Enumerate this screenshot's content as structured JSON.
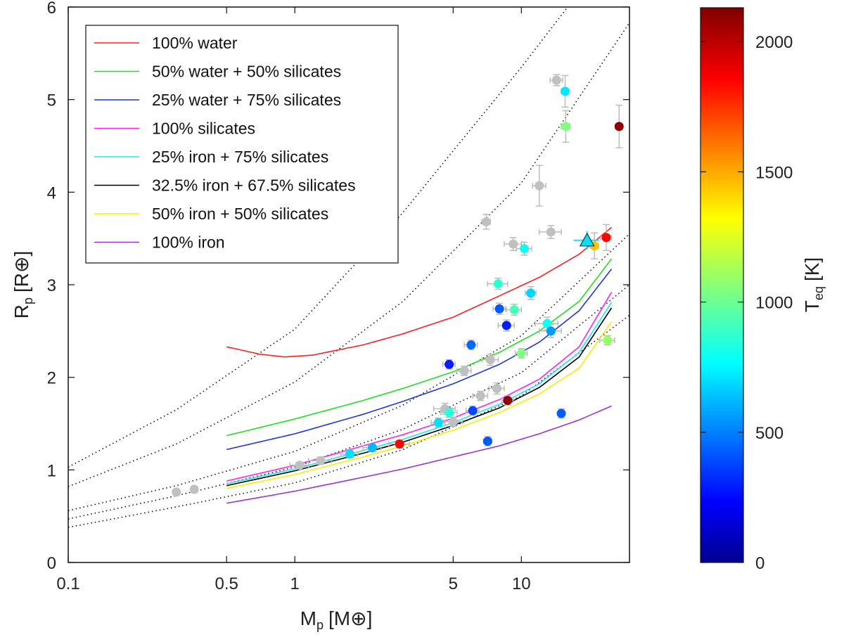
{
  "chart_data": {
    "type": "scatter",
    "x_scale": "log",
    "xlabel": {
      "main": "M",
      "sub": "p",
      "unit": "[M⊕]"
    },
    "ylabel": {
      "main": "R",
      "sub": "p",
      "unit": "[R⊕]"
    },
    "xlim": [
      0.1,
      30
    ],
    "ylim": [
      0,
      6
    ],
    "x_ticks": [
      {
        "value": 0.1,
        "label": "0.1"
      },
      {
        "value": 0.5,
        "label": "0.5"
      },
      {
        "value": 1,
        "label": "1"
      },
      {
        "value": 5,
        "label": "5"
      },
      {
        "value": 10,
        "label": "10"
      }
    ],
    "y_ticks": [
      {
        "value": 0,
        "label": "0"
      },
      {
        "value": 1,
        "label": "1"
      },
      {
        "value": 2,
        "label": "2"
      },
      {
        "value": 3,
        "label": "3"
      },
      {
        "value": 4,
        "label": "4"
      },
      {
        "value": 5,
        "label": "5"
      },
      {
        "value": 6,
        "label": "6"
      }
    ],
    "legend_position": "top-left",
    "models": [
      {
        "name": "100% water",
        "color": "#ff2020",
        "points": [
          [
            0.5,
            2.33
          ],
          [
            0.7,
            2.25
          ],
          [
            0.9,
            2.22
          ],
          [
            1.2,
            2.24
          ],
          [
            2,
            2.35
          ],
          [
            3,
            2.47
          ],
          [
            5,
            2.65
          ],
          [
            8,
            2.88
          ],
          [
            12,
            3.08
          ],
          [
            18,
            3.33
          ],
          [
            25,
            3.62
          ]
        ]
      },
      {
        "name": "50% water + 50% silicates",
        "color": "#22dd22",
        "points": [
          [
            0.5,
            1.37
          ],
          [
            1,
            1.55
          ],
          [
            2,
            1.75
          ],
          [
            3,
            1.88
          ],
          [
            5,
            2.06
          ],
          [
            8,
            2.27
          ],
          [
            12,
            2.5
          ],
          [
            18,
            2.82
          ],
          [
            25,
            3.28
          ]
        ]
      },
      {
        "name": "25% water + 75% silicates",
        "color": "#1f35e0",
        "points": [
          [
            0.5,
            1.22
          ],
          [
            1,
            1.39
          ],
          [
            2,
            1.6
          ],
          [
            3,
            1.74
          ],
          [
            5,
            1.93
          ],
          [
            8,
            2.14
          ],
          [
            12,
            2.38
          ],
          [
            18,
            2.72
          ],
          [
            25,
            3.17
          ]
        ]
      },
      {
        "name": "100% silicates",
        "color": "#ff20ff",
        "points": [
          [
            0.5,
            0.88
          ],
          [
            1,
            1.05
          ],
          [
            2,
            1.26
          ],
          [
            3,
            1.38
          ],
          [
            5,
            1.56
          ],
          [
            8,
            1.76
          ],
          [
            12,
            1.98
          ],
          [
            18,
            2.33
          ],
          [
            25,
            2.92
          ]
        ]
      },
      {
        "name": "25% iron + 75% silicates",
        "color": "#20e8e8",
        "points": [
          [
            0.5,
            0.85
          ],
          [
            1,
            1.01
          ],
          [
            2,
            1.21
          ],
          [
            3,
            1.33
          ],
          [
            5,
            1.51
          ],
          [
            8,
            1.71
          ],
          [
            12,
            1.93
          ],
          [
            18,
            2.27
          ],
          [
            25,
            2.81
          ]
        ]
      },
      {
        "name": "32.5% iron + 67.5% silicates",
        "color": "#000000",
        "points": [
          [
            0.5,
            0.83
          ],
          [
            1,
            0.99
          ],
          [
            2,
            1.18
          ],
          [
            3,
            1.3
          ],
          [
            5,
            1.48
          ],
          [
            8,
            1.67
          ],
          [
            12,
            1.89
          ],
          [
            18,
            2.22
          ],
          [
            25,
            2.75
          ]
        ]
      },
      {
        "name": "50% iron + 50% silicates",
        "color": "#f2f200",
        "points": [
          [
            0.5,
            0.8
          ],
          [
            1,
            0.95
          ],
          [
            2,
            1.14
          ],
          [
            3,
            1.26
          ],
          [
            5,
            1.43
          ],
          [
            8,
            1.62
          ],
          [
            12,
            1.82
          ],
          [
            18,
            2.1
          ],
          [
            25,
            2.6
          ]
        ]
      },
      {
        "name": "100% iron",
        "color": "#9a35d0",
        "points": [
          [
            0.5,
            0.64
          ],
          [
            1,
            0.77
          ],
          [
            2,
            0.92
          ],
          [
            3,
            1.01
          ],
          [
            5,
            1.14
          ],
          [
            8,
            1.26
          ],
          [
            12,
            1.39
          ],
          [
            18,
            1.54
          ],
          [
            25,
            1.69
          ]
        ]
      }
    ],
    "dotted_curves": [
      [
        [
          0.1,
          1.03
        ],
        [
          0.3,
          1.65
        ],
        [
          1,
          2.52
        ],
        [
          3,
          3.78
        ],
        [
          10,
          5.35
        ],
        [
          16,
          6.0
        ]
      ],
      [
        [
          0.1,
          0.82
        ],
        [
          0.3,
          1.28
        ],
        [
          1,
          1.95
        ],
        [
          3,
          2.82
        ],
        [
          10,
          4.1
        ],
        [
          30,
          5.83
        ]
      ],
      [
        [
          0.1,
          0.56
        ],
        [
          0.3,
          0.83
        ],
        [
          1,
          1.2
        ],
        [
          3,
          1.7
        ],
        [
          10,
          2.45
        ],
        [
          30,
          3.55
        ]
      ],
      [
        [
          0.1,
          0.47
        ],
        [
          0.3,
          0.72
        ],
        [
          1,
          1.03
        ],
        [
          3,
          1.44
        ],
        [
          10,
          2.05
        ],
        [
          30,
          3.0
        ]
      ],
      [
        [
          0.1,
          0.38
        ],
        [
          0.3,
          0.6
        ],
        [
          1,
          0.86
        ],
        [
          3,
          1.22
        ],
        [
          10,
          1.8
        ],
        [
          30,
          2.67
        ]
      ]
    ],
    "planets": [
      {
        "m": 0.3,
        "r": 0.76,
        "dm": 0.01,
        "dr": 0.03,
        "teq": null
      },
      {
        "m": 0.36,
        "r": 0.79,
        "dm": 0.01,
        "dr": 0.03,
        "teq": null
      },
      {
        "m": 1.05,
        "r": 1.05,
        "dm": 0.1,
        "dr": 0.03,
        "teq": null
      },
      {
        "m": 1.3,
        "r": 1.1,
        "dm": 0.15,
        "dr": 0.04,
        "teq": null
      },
      {
        "m": 1.75,
        "r": 1.17,
        "dm": 0.15,
        "dr": 0.04,
        "teq": 700
      },
      {
        "m": 2.2,
        "r": 1.24,
        "dm": 0.2,
        "dr": 0.04,
        "teq": 620
      },
      {
        "m": 2.9,
        "r": 1.28,
        "dm": 0.3,
        "dr": 0.04,
        "teq": 1850
      },
      {
        "m": 4.3,
        "r": 1.51,
        "dm": 0.3,
        "dr": 0.05,
        "teq": 700
      },
      {
        "m": 4.6,
        "r": 1.66,
        "dm": 0.5,
        "dr": 0.06,
        "teq": null
      },
      {
        "m": 4.8,
        "r": 1.62,
        "dm": 0.4,
        "dr": 0.05,
        "teq": 850
      },
      {
        "m": 5.0,
        "r": 1.52,
        "dm": 0.5,
        "dr": 0.05,
        "teq": null
      },
      {
        "m": 5.6,
        "r": 2.07,
        "dm": 0.4,
        "dr": 0.05,
        "teq": null
      },
      {
        "m": 4.8,
        "r": 2.14,
        "dm": 0.3,
        "dr": 0.05,
        "teq": 300
      },
      {
        "m": 6.1,
        "r": 1.64,
        "dm": 0.4,
        "dr": 0.05,
        "teq": 380
      },
      {
        "m": 6.0,
        "r": 2.35,
        "dm": 0.4,
        "dr": 0.05,
        "teq": 450
      },
      {
        "m": 6.6,
        "r": 1.8,
        "dm": 0.5,
        "dr": 0.05,
        "teq": null
      },
      {
        "m": 7.1,
        "r": 1.31,
        "dm": 0.3,
        "dr": 0.05,
        "teq": 420
      },
      {
        "m": 7.3,
        "r": 2.19,
        "dm": 0.6,
        "dr": 0.06,
        "teq": null
      },
      {
        "m": 7.8,
        "r": 1.88,
        "dm": 0.6,
        "dr": 0.06,
        "teq": null
      },
      {
        "m": 7.0,
        "r": 3.68,
        "dm": 0.3,
        "dr": 0.08,
        "teq": null
      },
      {
        "m": 7.9,
        "r": 3.01,
        "dm": 0.8,
        "dr": 0.06,
        "teq": 860
      },
      {
        "m": 8.0,
        "r": 2.74,
        "dm": 0.5,
        "dr": 0.06,
        "teq": 420
      },
      {
        "m": 8.6,
        "r": 2.56,
        "dm": 0.7,
        "dr": 0.06,
        "teq": 300
      },
      {
        "m": 8.7,
        "r": 1.75,
        "dm": 0.5,
        "dr": 0.05,
        "teq": 2100
      },
      {
        "m": 9.2,
        "r": 3.44,
        "dm": 0.8,
        "dr": 0.07,
        "teq": null
      },
      {
        "m": 9.3,
        "r": 2.73,
        "dm": 0.7,
        "dr": 0.06,
        "teq": 920
      },
      {
        "m": 10.0,
        "r": 2.26,
        "dm": 0.6,
        "dr": 0.05,
        "teq": 1050
      },
      {
        "m": 10.3,
        "r": 3.39,
        "dm": 0.8,
        "dr": 0.07,
        "teq": 800
      },
      {
        "m": 11.0,
        "r": 2.91,
        "dm": 0.6,
        "dr": 0.07,
        "teq": 680
      },
      {
        "m": 12.0,
        "r": 4.07,
        "dm": 0.8,
        "dr": 0.22,
        "teq": null
      },
      {
        "m": 13.0,
        "r": 2.58,
        "dm": 1.5,
        "dr": 0.07,
        "teq": 800
      },
      {
        "m": 13.5,
        "r": 2.5,
        "dm": 1.5,
        "dr": 0.07,
        "teq": 560
      },
      {
        "m": 13.5,
        "r": 3.57,
        "dm": 1.5,
        "dr": 0.07,
        "teq": null
      },
      {
        "m": 14.3,
        "r": 5.21,
        "dm": 0.9,
        "dr": 0.06,
        "teq": null
      },
      {
        "m": 15.0,
        "r": 1.61,
        "dm": 0.5,
        "dr": 0.05,
        "teq": 430
      },
      {
        "m": 15.6,
        "r": 5.09,
        "dm": 0.6,
        "dr": 0.17,
        "teq": 720
      },
      {
        "m": 15.7,
        "r": 4.71,
        "dm": 0.7,
        "dr": 0.17,
        "teq": 1050
      },
      {
        "m": 21.0,
        "r": 3.42,
        "dm": 0.9,
        "dr": 0.14,
        "teq": 1450
      },
      {
        "m": 23.7,
        "r": 3.51,
        "dm": 1.3,
        "dr": 0.14,
        "teq": 1850
      },
      {
        "m": 24.0,
        "r": 2.4,
        "dm": 1.8,
        "dr": 0.05,
        "teq": 1100
      },
      {
        "m": 27.0,
        "r": 4.71,
        "dm": 1.0,
        "dr": 0.23,
        "teq": 2100
      }
    ],
    "highlight": {
      "m": 19.5,
      "r": 3.48,
      "dm": 2.5,
      "dr": 0.1,
      "teq": 700,
      "marker": "triangle"
    },
    "colorbar": {
      "label": {
        "main": "T",
        "sub": "eq",
        "unit": "[K]"
      },
      "min": 0,
      "max": 2130,
      "ticks": [
        {
          "value": 0,
          "label": "0"
        },
        {
          "value": 500,
          "label": "500"
        },
        {
          "value": 1000,
          "label": "1000"
        },
        {
          "value": 1500,
          "label": "1500"
        },
        {
          "value": 2000,
          "label": "2000"
        }
      ]
    },
    "missing_teq_color": "#c0c0c0",
    "errorbar_color": "#b8b8b8"
  }
}
